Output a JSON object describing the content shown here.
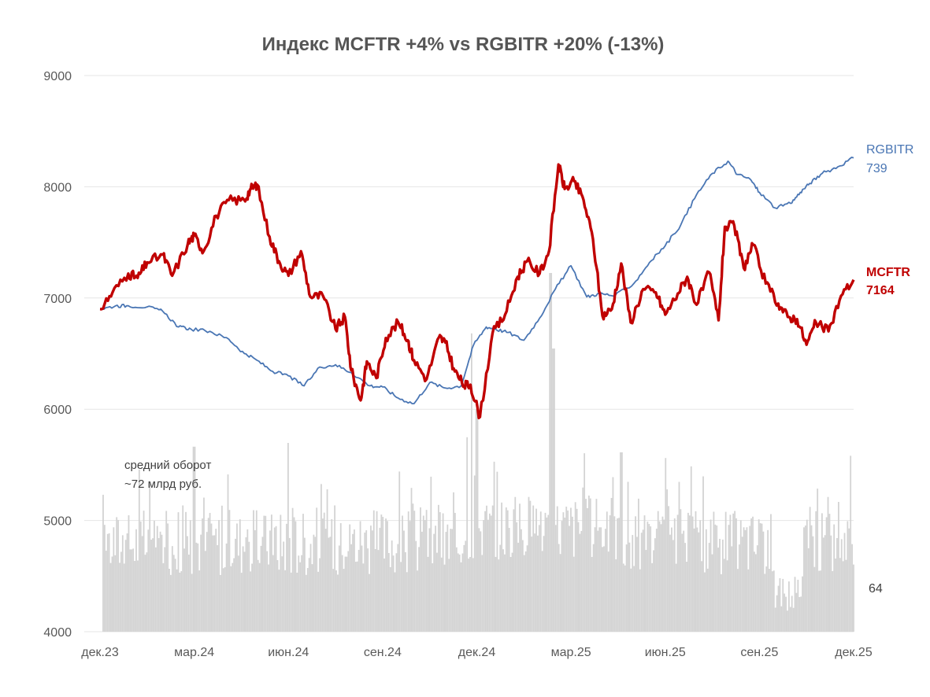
{
  "chart_data": {
    "type": "line",
    "title": "Индекс MCFTR +4% vs RGBITR +20% (-13%)",
    "ylim": [
      4000,
      9000
    ],
    "y_ticks": [
      4000,
      5000,
      6000,
      7000,
      8000,
      9000
    ],
    "x_ticks": [
      "дек.23",
      "мар.24",
      "июн.24",
      "сен.24",
      "дек.24",
      "мар.25",
      "июн.25",
      "сен.25",
      "дек.25"
    ],
    "x_months_range": [
      0,
      24
    ],
    "grid": true,
    "colors": {
      "mcftr": "#C00000",
      "rgbitr": "#4A76B4",
      "volume": "#D3D3D3",
      "grid": "#E6E6E6"
    },
    "series": [
      {
        "name": "RGBITR",
        "label_name": "RGBITR",
        "label_value": "739",
        "x": [
          0,
          0.5,
          0.9,
          1.5,
          2.0,
          2.5,
          2.9,
          3.5,
          4.1,
          4.6,
          5.0,
          5.5,
          6.0,
          6.5,
          7.0,
          7.5,
          8.0,
          8.6,
          9.0,
          9.5,
          10.0,
          10.5,
          11.0,
          11.5,
          11.9,
          12.3,
          12.6,
          13.0,
          13.5,
          14.0,
          14.5,
          15.0,
          15.5,
          15.9,
          16.4,
          17.0,
          17.5,
          18.0,
          18.5,
          19.0,
          19.5,
          20.0,
          20.3,
          20.7,
          21.0,
          21.5,
          22.0,
          22.3,
          22.6,
          23.0,
          23.5,
          24.0
        ],
        "values": [
          6900,
          6930,
          6930,
          6920,
          6880,
          6740,
          6720,
          6700,
          6630,
          6500,
          6440,
          6340,
          6300,
          6210,
          6380,
          6400,
          6330,
          6210,
          6200,
          6100,
          6050,
          6240,
          6190,
          6210,
          6580,
          6740,
          6720,
          6690,
          6620,
          6820,
          7080,
          7290,
          7010,
          7040,
          7020,
          7130,
          7320,
          7470,
          7660,
          7930,
          8120,
          8230,
          8110,
          8070,
          7950,
          7810,
          7850,
          7950,
          8030,
          8120,
          8180,
          8260
        ]
      },
      {
        "name": "MCFTR",
        "label_name": "MCFTR",
        "label_value": "7164",
        "x": [
          0,
          0.4,
          0.9,
          1.2,
          1.5,
          2.0,
          2.3,
          2.8,
          3.0,
          3.3,
          3.7,
          4.1,
          4.6,
          4.8,
          5.0,
          5.4,
          5.7,
          6.0,
          6.4,
          6.7,
          7.1,
          7.5,
          7.8,
          8.0,
          8.3,
          8.5,
          8.8,
          9.1,
          9.5,
          9.8,
          10.0,
          10.4,
          10.8,
          11.0,
          11.3,
          11.6,
          11.8,
          12.1,
          12.5,
          12.9,
          13.3,
          13.6,
          14.0,
          14.3,
          14.6,
          14.8,
          15.1,
          15.4,
          15.7,
          16.0,
          16.3,
          16.6,
          16.9,
          17.3,
          17.7,
          18.0,
          18.4,
          18.7,
          19.0,
          19.4,
          19.7,
          19.9,
          20.2,
          20.5,
          20.8,
          21.2,
          21.6,
          21.9,
          22.2,
          22.5,
          22.8,
          23.2,
          23.6,
          24.0
        ],
        "values": [
          6900,
          7050,
          7220,
          7180,
          7320,
          7390,
          7200,
          7490,
          7560,
          7420,
          7740,
          7880,
          7880,
          7980,
          8020,
          7550,
          7330,
          7200,
          7420,
          7010,
          7020,
          6720,
          6830,
          6350,
          6080,
          6430,
          6280,
          6640,
          6780,
          6620,
          6440,
          6270,
          6650,
          6600,
          6340,
          6210,
          6220,
          5930,
          6680,
          6850,
          7190,
          7330,
          7220,
          7420,
          8200,
          7980,
          8050,
          7880,
          7530,
          6840,
          6900,
          7310,
          6780,
          7080,
          7050,
          6850,
          7040,
          7190,
          6940,
          7230,
          6800,
          7640,
          7650,
          7270,
          7480,
          7130,
          6950,
          6830,
          6810,
          6580,
          6780,
          6700,
          7020,
          7164
        ]
      }
    ],
    "volume": {
      "name": "средний оборот",
      "note_line1": "средний оборот",
      "note_line2": "~72 млрд руб.",
      "last_value": "64",
      "unit": "млрд руб.",
      "spikes": [
        {
          "month": 11.85,
          "value": 158
        },
        {
          "month": 14.35,
          "value": 190
        },
        {
          "month": 14.45,
          "value": 150
        },
        {
          "month": 6.0,
          "value": 100
        },
        {
          "month": 3.0,
          "value": 98
        },
        {
          "month": 16.6,
          "value": 95
        },
        {
          "month": 18.0,
          "value": 92
        },
        {
          "month": 11.7,
          "value": 103
        },
        {
          "month": 12.0,
          "value": 118
        }
      ]
    }
  }
}
